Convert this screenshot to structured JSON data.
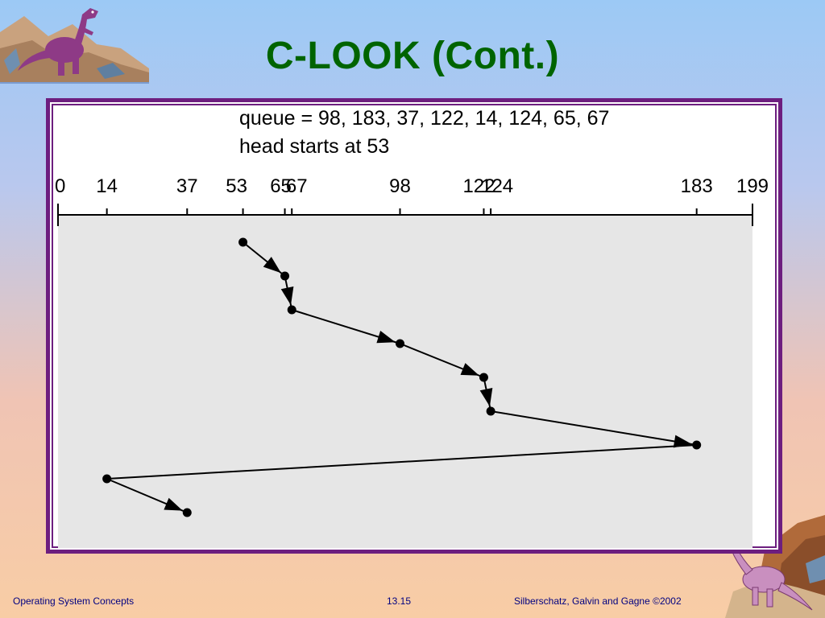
{
  "slide": {
    "title": "C-LOOK (Cont.)",
    "footer_left": "Operating System Concepts",
    "footer_center": "13.15",
    "footer_right": "Silberschatz, Galvin and  Gagne ©2002"
  },
  "figure": {
    "queue_line": "queue = 98, 183, 37, 122, 14, 124, 65, 67",
    "head_line": "head starts at 53",
    "axis_min": 0,
    "axis_max": 199,
    "ticks": [
      0,
      14,
      37,
      53,
      65,
      67,
      98,
      122,
      124,
      183,
      199
    ],
    "path": [
      53,
      65,
      67,
      98,
      122,
      124,
      183,
      14,
      37
    ],
    "line_color": "#000000",
    "plot_background": "#e6e6e6"
  }
}
